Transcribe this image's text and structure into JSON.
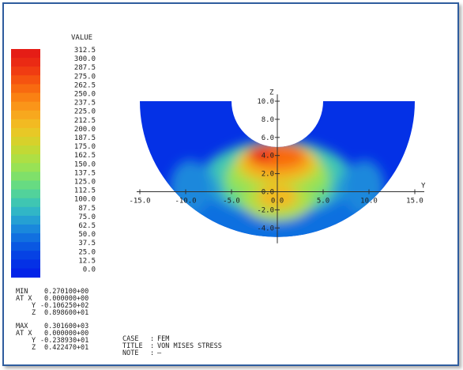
{
  "chart_data": {
    "type": "heatmap",
    "title": "VON MISES STRESS",
    "case": "FEM",
    "note": "—",
    "legend": {
      "title": "VALUE",
      "placement": "left",
      "levels": [
        "312.5",
        "300.0",
        "287.5",
        "275.0",
        "262.5",
        "250.0",
        "237.5",
        "225.0",
        "212.5",
        "200.0",
        "187.5",
        "175.0",
        "162.5",
        "150.0",
        "137.5",
        "125.0",
        "112.5",
        "100.0",
        "87.5",
        "75.0",
        "62.5",
        "50.0",
        "37.5",
        "25.0",
        "12.5",
        "0.0"
      ],
      "colors": [
        "#e51d16",
        "#ea2a14",
        "#f03c12",
        "#f55310",
        "#f86a10",
        "#fa8113",
        "#fa9519",
        "#f7a81e",
        "#f2ba22",
        "#e8c826",
        "#d7d12b",
        "#c2d935",
        "#aedf44",
        "#98e255",
        "#7fe06a",
        "#67db82",
        "#52d29b",
        "#3fc6b2",
        "#31b6c6",
        "#25a0d3",
        "#1a88dc",
        "#1170e0",
        "#0a58e2",
        "#0642e4",
        "#0431e6",
        "#0323e8"
      ]
    },
    "y_axis": {
      "label": "Y",
      "range": [
        -15.0,
        15.0
      ],
      "ticks": [
        "-15.0",
        "-10.0",
        "-5.0",
        "0.0",
        "5.0",
        "10.0",
        "15.0"
      ]
    },
    "z_axis": {
      "label": "Z",
      "range": [
        -5.0,
        10.0
      ],
      "ticks": [
        "-4.0",
        "-2.0",
        "0.0",
        "2.0",
        "4.0",
        "6.0",
        "8.0",
        "10.0"
      ]
    },
    "domain": {
      "outer_radius": 15.0,
      "hole_radius": 5.0,
      "hole_center_z": 10.0,
      "top_z": 10.0,
      "y_extent": [
        -15.0,
        15.0
      ]
    },
    "stats": {
      "min": {
        "label": "MIN",
        "value": "0.270100+00",
        "at_label": "AT X",
        "x": "0.000000+00",
        "y_label": "Y",
        "y": "-0.106250+02",
        "z_label": "Z",
        "z": "0.898600+01"
      },
      "max": {
        "label": "MAX",
        "value": "0.301600+03",
        "at_label": "AT X",
        "x": "0.000000+00",
        "y_label": "Y",
        "y": "-0.238930+01",
        "z_label": "Z",
        "z": "0.422470+01"
      }
    },
    "info": {
      "case_label": "CASE",
      "case_value": "FEM",
      "title_label": "TITLE",
      "title_value": "VON MISES STRESS",
      "note_label": "NOTE",
      "note_value": "—"
    }
  }
}
